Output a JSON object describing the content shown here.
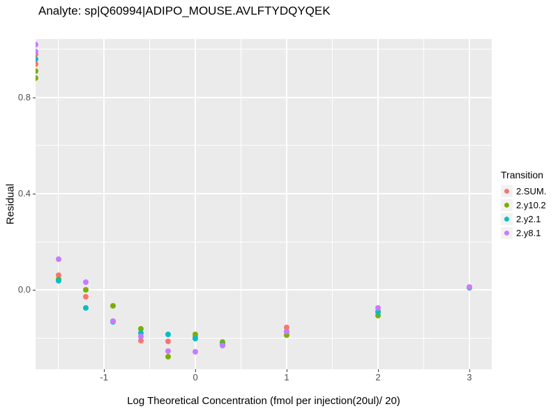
{
  "title": "Analyte: sp|Q60994|ADIPO_MOUSE.AVLFTYDQYQEK",
  "axes": {
    "x": {
      "label": "Log Theoretical Concentration (fmol per injection(20ul)/ 20)",
      "ticks": [
        {
          "value": -1,
          "label": "-1"
        },
        {
          "value": 0,
          "label": "0"
        },
        {
          "value": 1,
          "label": "1"
        },
        {
          "value": 2,
          "label": "2"
        },
        {
          "value": 3,
          "label": "3"
        }
      ],
      "minor": [
        -1.5,
        -0.5,
        0.5,
        1.5,
        2.5
      ]
    },
    "y": {
      "label": "Residual",
      "ticks": [
        {
          "value": 0.8,
          "label": "0.8"
        },
        {
          "value": 0.4,
          "label": "0.4"
        },
        {
          "value": 0.0,
          "label": "0.0"
        }
      ],
      "minor": [
        1.0,
        0.6,
        0.2,
        -0.2
      ]
    }
  },
  "legend": {
    "title": "Transition",
    "items": [
      {
        "label": "2.SUM.",
        "color": "#F8766D"
      },
      {
        "label": "2.y10.2",
        "color": "#7CAE00"
      },
      {
        "label": "2.y2.1",
        "color": "#00BFC4"
      },
      {
        "label": "2.y8.1",
        "color": "#C77CFF"
      }
    ]
  },
  "colors": {
    "panel_bg": "#EBEBEB",
    "grid": "#FFFFFF",
    "tick_text": "#4D4D4D",
    "text": "#000000",
    "legend_key_bg": "#F2F2F2"
  },
  "chart_data": {
    "type": "scatter",
    "title": "Analyte: sp|Q60994|ADIPO_MOUSE.AVLFTYDQYQEK",
    "xlabel": "Log Theoretical Concentration (fmol per injection(20ul)/ 20)",
    "ylabel": "Residual",
    "xlim": [
      -1.75,
      3.245
    ],
    "ylim": [
      -0.33,
      1.043
    ],
    "grid": true,
    "legend_title": "Transition",
    "legend_position": "right",
    "series": [
      {
        "name": "2.SUM.",
        "color": "#F8766D",
        "points": [
          [
            -1.75,
            0.98
          ],
          [
            -1.75,
            0.94
          ],
          [
            -1.5,
            0.06
          ],
          [
            -1.2,
            -0.03
          ],
          [
            -0.9,
            -0.13
          ],
          [
            -0.6,
            -0.21
          ],
          [
            -0.3,
            -0.215
          ],
          [
            0.0,
            -0.197
          ],
          [
            0.3,
            -0.225
          ],
          [
            1.0,
            -0.157
          ],
          [
            2.0,
            -0.09
          ],
          [
            3.0,
            0.012
          ]
        ]
      },
      {
        "name": "2.y10.2",
        "color": "#7CAE00",
        "points": [
          [
            -1.75,
            0.91
          ],
          [
            -1.75,
            0.88
          ],
          [
            -1.5,
            0.045
          ],
          [
            -1.2,
            0.0
          ],
          [
            -0.9,
            -0.065
          ],
          [
            -0.6,
            -0.162
          ],
          [
            -0.3,
            -0.279
          ],
          [
            0.0,
            -0.186
          ],
          [
            0.3,
            -0.218
          ],
          [
            1.0,
            -0.189
          ],
          [
            2.0,
            -0.106
          ],
          [
            3.0,
            0.008
          ]
        ]
      },
      {
        "name": "2.y2.1",
        "color": "#00BFC4",
        "points": [
          [
            -1.75,
            0.96
          ],
          [
            -1.5,
            0.037
          ],
          [
            -1.2,
            -0.075
          ],
          [
            -0.9,
            -0.133
          ],
          [
            -0.6,
            -0.178
          ],
          [
            -0.3,
            -0.186
          ],
          [
            0.0,
            -0.203
          ],
          [
            0.3,
            -0.228
          ],
          [
            1.0,
            -0.175
          ],
          [
            2.0,
            -0.092
          ],
          [
            3.0,
            0.01
          ]
        ]
      },
      {
        "name": "2.y8.1",
        "color": "#C77CFF",
        "points": [
          [
            -1.75,
            1.02
          ],
          [
            -1.75,
            0.99
          ],
          [
            -1.5,
            0.128
          ],
          [
            -1.2,
            0.032
          ],
          [
            -0.9,
            -0.13
          ],
          [
            -0.6,
            -0.193
          ],
          [
            -0.3,
            -0.256
          ],
          [
            0.0,
            -0.258
          ],
          [
            0.3,
            -0.232
          ],
          [
            1.0,
            -0.173
          ],
          [
            2.0,
            -0.075
          ],
          [
            3.0,
            0.012
          ]
        ]
      }
    ]
  }
}
